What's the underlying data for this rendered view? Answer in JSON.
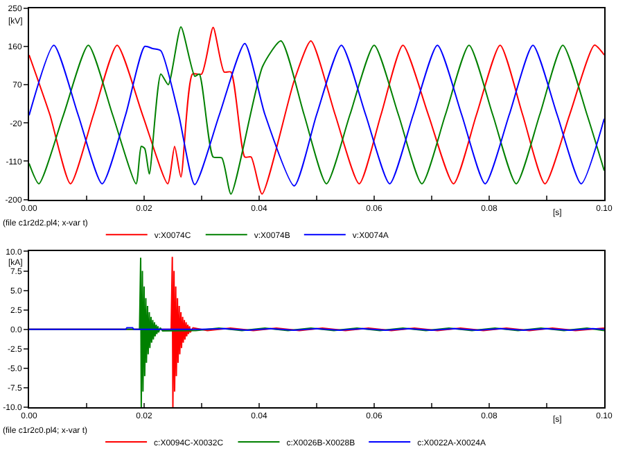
{
  "chart_data": [
    {
      "type": "line",
      "ylabel": "[kV]",
      "xlabel": "[s]",
      "legend_title": "(file c1r2d2.pl4; x-var t)",
      "legend": "bottom",
      "xlim": [
        0,
        0.1
      ],
      "xticks": [
        {
          "value": 0,
          "label": "0.00"
        },
        {
          "value": 0.01,
          "label": null
        },
        {
          "value": 0.02,
          "label": "0.02"
        },
        {
          "value": 0.03,
          "label": null
        },
        {
          "value": 0.04,
          "label": "0.04"
        },
        {
          "value": 0.05,
          "label": null
        },
        {
          "value": 0.06,
          "label": "0.06"
        },
        {
          "value": 0.07,
          "label": null
        },
        {
          "value": 0.08,
          "label": "0.08"
        },
        {
          "value": 0.09,
          "label": null
        },
        {
          "value": 0.1,
          "label": "0.10"
        }
      ],
      "ylim": [
        -200,
        250
      ],
      "yticks": [
        250,
        160,
        70,
        -20,
        -110,
        -200
      ],
      "series": [
        {
          "name": "v:X0074C",
          "color": "#ff0000",
          "x": [
            0,
            0.0036,
            0.0072,
            0.0112,
            0.0153,
            0.0197,
            0.0241,
            0.0253,
            0.0264,
            0.0284,
            0.03,
            0.032,
            0.0339,
            0.0351,
            0.0375,
            0.0386,
            0.0405,
            0.0461,
            0.049,
            0.0532,
            0.0574,
            0.0612,
            0.065,
            0.0694,
            0.0738,
            0.0778,
            0.0819,
            0.0858,
            0.0897,
            0.094,
            0.0983,
            0.1
          ],
          "values": [
            140,
            0,
            -163,
            0,
            163,
            0,
            -163,
            -75,
            -147,
            95,
            95,
            205,
            100,
            100,
            -100,
            -100,
            -187,
            80,
            173,
            0,
            -163,
            0,
            163,
            0,
            -163,
            0,
            163,
            0,
            -163,
            0,
            163,
            140
          ]
        },
        {
          "name": "v:X0074B",
          "color": "#008000",
          "x": [
            0,
            0.0017,
            0.006,
            0.0103,
            0.0145,
            0.0186,
            0.0195,
            0.0201,
            0.0209,
            0.0229,
            0.0242,
            0.0264,
            0.0288,
            0.0296,
            0.032,
            0.0335,
            0.0351,
            0.0406,
            0.0438,
            0.0478,
            0.0517,
            0.0558,
            0.06,
            0.0642,
            0.0683,
            0.0724,
            0.0765,
            0.0806,
            0.0847,
            0.0888,
            0.0928,
            0.097,
            0.1
          ],
          "values": [
            -115,
            -163,
            0,
            163,
            0,
            -163,
            -75,
            -80,
            -140,
            95,
            70,
            206,
            90,
            95,
            -100,
            -102,
            -187,
            113,
            173,
            0,
            -163,
            0,
            163,
            0,
            -163,
            0,
            163,
            0,
            -163,
            0,
            163,
            0,
            -132
          ]
        },
        {
          "name": "v:X0074A",
          "color": "#0000ff",
          "x": [
            0,
            0.0043,
            0.0085,
            0.0127,
            0.0168,
            0.0201,
            0.0215,
            0.0229,
            0.026,
            0.0288,
            0.0331,
            0.0375,
            0.041,
            0.0461,
            0.05,
            0.0543,
            0.0585,
            0.0627,
            0.0668,
            0.071,
            0.0752,
            0.0793,
            0.0835,
            0.0876,
            0.0918,
            0.096,
            0.1
          ],
          "values": [
            -2,
            163,
            0,
            -163,
            0,
            160,
            155,
            150,
            0,
            -165,
            0,
            167,
            0,
            -168,
            0,
            163,
            0,
            -163,
            0,
            163,
            0,
            -163,
            0,
            163,
            0,
            -163,
            -10
          ]
        }
      ]
    },
    {
      "type": "line",
      "ylabel": "[kA]",
      "xlabel": "[s]",
      "legend_title": "(file c1r2c0.pl4; x-var t)",
      "legend": "bottom",
      "xlim": [
        0,
        0.1
      ],
      "xticks": [
        {
          "value": 0,
          "label": "0.00"
        },
        {
          "value": 0.01,
          "label": null
        },
        {
          "value": 0.02,
          "label": "0.02"
        },
        {
          "value": 0.03,
          "label": null
        },
        {
          "value": 0.04,
          "label": "0.04"
        },
        {
          "value": 0.05,
          "label": null
        },
        {
          "value": 0.06,
          "label": "0.06"
        },
        {
          "value": 0.07,
          "label": null
        },
        {
          "value": 0.08,
          "label": "0.08"
        },
        {
          "value": 0.09,
          "label": null
        },
        {
          "value": 0.1,
          "label": "0.10"
        }
      ],
      "ylim": [
        -10,
        10
      ],
      "yticks": [
        {
          "value": 10,
          "label": "10.0"
        },
        {
          "value": 7.5,
          "label": "7.5"
        },
        {
          "value": 5,
          "label": "5.0"
        },
        {
          "value": 2.5,
          "label": "2.5"
        },
        {
          "value": 0,
          "label": "0.0"
        },
        {
          "value": -2.5,
          "label": "-2.5"
        },
        {
          "value": -5,
          "label": "-5.0"
        },
        {
          "value": -7.5,
          "label": "-7.5"
        },
        {
          "value": -10,
          "label": "-10.0"
        }
      ],
      "series": [
        {
          "name": "c:X0094C-X0032C",
          "color": "#ff0000",
          "x": [
            0,
            0.0247,
            0.0249,
            0.025,
            0.0252,
            0.0253,
            0.0255,
            0.0256,
            0.0258,
            0.0259,
            0.0261,
            0.0262,
            0.0264,
            0.0265,
            0.0267,
            0.0268,
            0.027,
            0.0271,
            0.0273,
            0.0274,
            0.0276,
            0.0277,
            0.0279,
            0.028,
            0.0285,
            0.031,
            0.035,
            0.039,
            0.043,
            0.047,
            0.051,
            0.055,
            0.059,
            0.063,
            0.067,
            0.071,
            0.075,
            0.079,
            0.083,
            0.087,
            0.091,
            0.095,
            0.1
          ],
          "values": [
            0,
            0,
            9.3,
            -10,
            7.5,
            -8,
            5.5,
            -6,
            4,
            -4.3,
            3,
            -3.2,
            2.2,
            -2.4,
            1.6,
            -1.7,
            1.2,
            -1.3,
            0.9,
            -0.9,
            0.6,
            -0.6,
            0.4,
            -0.4,
            0.2,
            -0.15,
            0.15,
            -0.15,
            0.15,
            -0.15,
            0.15,
            -0.15,
            0.15,
            -0.15,
            0.15,
            -0.15,
            0.15,
            -0.15,
            0.15,
            -0.15,
            0.15,
            -0.15,
            0.15
          ]
        },
        {
          "name": "c:X0026B-X0028B",
          "color": "#008000",
          "x": [
            0,
            0.0192,
            0.0194,
            0.0195,
            0.0197,
            0.0198,
            0.02,
            0.0201,
            0.0203,
            0.0204,
            0.0206,
            0.0207,
            0.0209,
            0.021,
            0.0212,
            0.0213,
            0.0215,
            0.0216,
            0.0218,
            0.0219,
            0.0221,
            0.0222,
            0.0224,
            0.0225,
            0.0228,
            0.0232,
            0.029,
            0.033,
            0.037,
            0.041,
            0.045,
            0.049,
            0.053,
            0.057,
            0.061,
            0.065,
            0.069,
            0.073,
            0.077,
            0.081,
            0.085,
            0.089,
            0.093,
            0.097,
            0.1
          ],
          "values": [
            0,
            0,
            9.2,
            -10,
            7.5,
            -8,
            5.5,
            -6,
            4,
            -4.3,
            3,
            -3.2,
            2.2,
            -2.4,
            1.6,
            -1.7,
            1.2,
            -1.3,
            0.9,
            -0.9,
            0.6,
            -0.6,
            0.4,
            -0.4,
            0.2,
            -0.2,
            -0.15,
            0.15,
            -0.15,
            0.15,
            -0.15,
            0.15,
            -0.15,
            0.15,
            -0.15,
            0.15,
            -0.15,
            0.15,
            -0.15,
            0.15,
            -0.15,
            0.15,
            -0.15,
            0.15,
            -0.15
          ]
        },
        {
          "name": "c:X0022A-X0024A",
          "color": "#0000ff",
          "x": [
            0,
            0.0168,
            0.017,
            0.018,
            0.0182,
            0.03,
            0.034,
            0.038,
            0.042,
            0.046,
            0.05,
            0.054,
            0.058,
            0.062,
            0.066,
            0.07,
            0.074,
            0.078,
            0.082,
            0.086,
            0.09,
            0.094,
            0.098,
            0.1
          ],
          "values": [
            0,
            0,
            0.2,
            0.2,
            0,
            0,
            0.1,
            -0.1,
            0.1,
            -0.1,
            0.1,
            -0.1,
            0.1,
            -0.1,
            0.1,
            -0.1,
            0.1,
            -0.1,
            0.1,
            -0.1,
            0.1,
            -0.1,
            0.1,
            0
          ]
        }
      ]
    }
  ]
}
